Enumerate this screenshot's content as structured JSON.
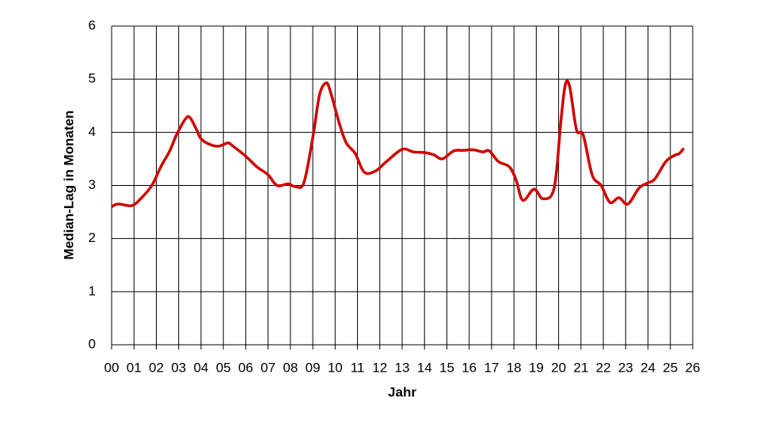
{
  "chart_data": {
    "type": "line",
    "x_label": "Jahr",
    "y_label": "Median-Lag in Monaten",
    "xlim": [
      0,
      26
    ],
    "xticks": [
      {
        "value": 0,
        "label": "00"
      },
      {
        "value": 1,
        "label": "01"
      },
      {
        "value": 2,
        "label": "02"
      },
      {
        "value": 3,
        "label": "03"
      },
      {
        "value": 4,
        "label": "04"
      },
      {
        "value": 5,
        "label": "05"
      },
      {
        "value": 6,
        "label": "06"
      },
      {
        "value": 7,
        "label": "07"
      },
      {
        "value": 8,
        "label": "08"
      },
      {
        "value": 9,
        "label": "09"
      },
      10,
      11,
      12,
      13,
      14,
      15,
      16,
      17,
      18,
      19,
      20,
      21,
      22,
      23,
      24,
      25,
      26
    ],
    "ylim": [
      0,
      6
    ],
    "yticks": [
      0,
      1,
      2,
      3,
      4,
      5,
      6
    ],
    "grid": true,
    "x": [
      0.0,
      0.3,
      0.9,
      1.3,
      1.8,
      2.2,
      2.6,
      2.9,
      3.3,
      3.5,
      3.8,
      4.0,
      4.4,
      4.8,
      5.2,
      5.4,
      6.0,
      6.5,
      7.0,
      7.4,
      7.9,
      8.2,
      8.6,
      9.0,
      9.3,
      9.6,
      9.8,
      10.2,
      10.5,
      10.9,
      11.3,
      11.8,
      12.3,
      13.0,
      13.5,
      14.0,
      14.4,
      14.8,
      15.3,
      15.7,
      16.2,
      16.6,
      16.9,
      17.3,
      17.8,
      18.1,
      18.4,
      18.9,
      19.3,
      19.8,
      20.1,
      20.3,
      20.5,
      20.8,
      21.1,
      21.5,
      21.9,
      22.3,
      22.7,
      23.1,
      23.6,
      24.0,
      24.3,
      24.8,
      25.2,
      25.4,
      25.6
    ],
    "series": [
      {
        "color": "#d00000",
        "values": [
          2.6,
          2.65,
          2.62,
          2.75,
          3.0,
          3.35,
          3.65,
          3.95,
          4.25,
          4.28,
          4.05,
          3.88,
          3.77,
          3.74,
          3.8,
          3.75,
          3.55,
          3.35,
          3.2,
          3.0,
          3.03,
          2.98,
          3.05,
          3.9,
          4.7,
          4.93,
          4.75,
          4.15,
          3.8,
          3.6,
          3.25,
          3.27,
          3.45,
          3.68,
          3.63,
          3.62,
          3.58,
          3.5,
          3.65,
          3.66,
          3.67,
          3.63,
          3.65,
          3.45,
          3.35,
          3.1,
          2.72,
          2.93,
          2.75,
          2.95,
          4.2,
          4.9,
          4.85,
          4.05,
          3.95,
          3.2,
          3.0,
          2.68,
          2.77,
          2.65,
          2.95,
          3.05,
          3.12,
          3.45,
          3.57,
          3.6,
          3.7
        ]
      }
    ]
  }
}
